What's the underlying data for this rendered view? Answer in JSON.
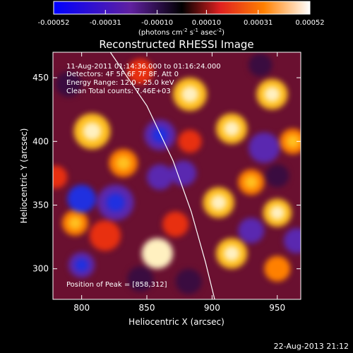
{
  "colorbar": {
    "ticks": [
      "-0.00052",
      "-0.00031",
      "-0.00010",
      "0.00010",
      "0.00031",
      "0.00052"
    ],
    "tick_values": [
      -0.00052,
      -0.00031,
      -0.0001,
      0.0001,
      0.00031,
      0.00052
    ],
    "range": [
      -0.00052,
      0.00052
    ],
    "units": {
      "open": "(photons cm",
      "exp1": "-2",
      "mid1": " s",
      "exp2": "-1",
      "mid2": " asec",
      "exp3": "-2",
      "close": ")"
    }
  },
  "chart_data": {
    "type": "heatmap",
    "title": "Reconstructed RHESSI Image",
    "xlabel": "Heliocentric X (arcsec)",
    "ylabel": "Heliocentric Y (arcsec)",
    "xlim": [
      778,
      968
    ],
    "ylim": [
      276,
      470
    ],
    "xticks": [
      800,
      850,
      900,
      950
    ],
    "yticks": [
      300,
      350,
      400,
      450
    ],
    "colormap": [
      "#0000ff",
      "#6020a0",
      "#000000",
      "#e02020",
      "#ff8000",
      "#ffffff"
    ],
    "peak": {
      "x": 858,
      "y": 312
    },
    "limb_curve": [
      [
        822,
        470
      ],
      [
        850,
        428
      ],
      [
        870,
        385
      ],
      [
        884,
        345
      ],
      [
        895,
        305
      ],
      [
        902,
        276
      ]
    ],
    "blobs": [
      {
        "x": 858,
        "y": 312,
        "v": 1.0,
        "s": 12
      },
      {
        "x": 808,
        "y": 408,
        "v": 0.8,
        "s": 14
      },
      {
        "x": 832,
        "y": 383,
        "v": 0.7,
        "s": 11
      },
      {
        "x": 883,
        "y": 437,
        "v": 0.75,
        "s": 13
      },
      {
        "x": 915,
        "y": 410,
        "v": 0.8,
        "s": 12
      },
      {
        "x": 946,
        "y": 437,
        "v": 0.85,
        "s": 12
      },
      {
        "x": 962,
        "y": 400,
        "v": 0.7,
        "s": 10
      },
      {
        "x": 905,
        "y": 352,
        "v": 0.75,
        "s": 12
      },
      {
        "x": 930,
        "y": 368,
        "v": 0.6,
        "s": 10
      },
      {
        "x": 950,
        "y": 344,
        "v": 0.75,
        "s": 11
      },
      {
        "x": 915,
        "y": 312,
        "v": 0.8,
        "s": 12
      },
      {
        "x": 950,
        "y": 300,
        "v": 0.55,
        "s": 10
      },
      {
        "x": 872,
        "y": 335,
        "v": 0.5,
        "s": 10
      },
      {
        "x": 818,
        "y": 326,
        "v": 0.5,
        "s": 12
      },
      {
        "x": 795,
        "y": 336,
        "v": 0.6,
        "s": 10
      },
      {
        "x": 845,
        "y": 455,
        "v": 0.45,
        "s": 10
      },
      {
        "x": 883,
        "y": 400,
        "v": 0.4,
        "s": 9
      },
      {
        "x": 780,
        "y": 372,
        "v": 0.4,
        "s": 9
      },
      {
        "x": 826,
        "y": 352,
        "v": -0.7,
        "s": 14
      },
      {
        "x": 800,
        "y": 355,
        "v": -0.9,
        "s": 11
      },
      {
        "x": 800,
        "y": 303,
        "v": -0.6,
        "s": 10
      },
      {
        "x": 860,
        "y": 405,
        "v": -0.6,
        "s": 12
      },
      {
        "x": 878,
        "y": 375,
        "v": -0.55,
        "s": 10
      },
      {
        "x": 860,
        "y": 372,
        "v": -0.5,
        "s": 10
      },
      {
        "x": 940,
        "y": 395,
        "v": -0.5,
        "s": 12
      },
      {
        "x": 950,
        "y": 373,
        "v": -0.45,
        "s": 9
      },
      {
        "x": 930,
        "y": 330,
        "v": -0.5,
        "s": 10
      },
      {
        "x": 965,
        "y": 322,
        "v": -0.5,
        "s": 10
      },
      {
        "x": 882,
        "y": 290,
        "v": -0.4,
        "s": 10
      },
      {
        "x": 937,
        "y": 460,
        "v": -0.4,
        "s": 9
      },
      {
        "x": 845,
        "y": 292,
        "v": -0.35,
        "s": 10
      },
      {
        "x": 790,
        "y": 445,
        "v": -0.3,
        "s": 10
      }
    ]
  },
  "annotations": {
    "time": "11-Aug-2011 01:14:36.000 to 01:16:24.000",
    "detectors": "Detectors: 4F 5F 6F 7F 8F, Att 0",
    "energy": "Energy Range: 12.0 - 25.0 keV",
    "clean": "Clean    Total counts: 7.46E+03",
    "peak_text": "Position of Peak = [858,312]"
  },
  "footer": {
    "date": "22-Aug-2013 21:12"
  }
}
